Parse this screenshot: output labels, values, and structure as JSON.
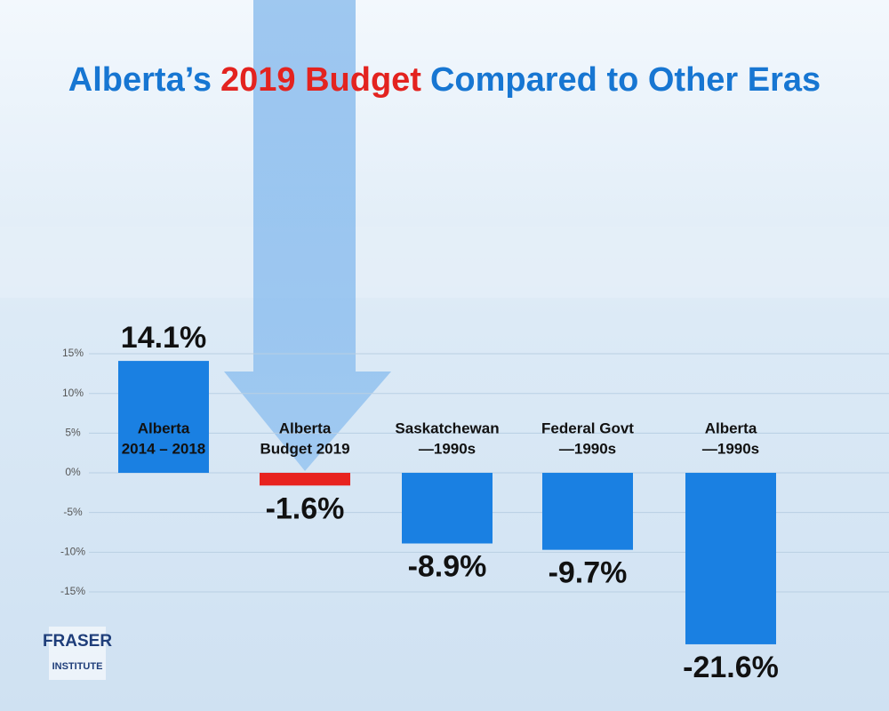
{
  "chart_data": {
    "type": "bar",
    "title_parts": [
      {
        "text": "Alberta’s",
        "color": "#1776d2"
      },
      {
        "text": "2019 Budget",
        "color": "#e3231f"
      },
      {
        "text": "Compared to Other Eras",
        "color": "#1776d2"
      }
    ],
    "categories": [
      [
        "Alberta",
        "2014 – 2018"
      ],
      [
        "Alberta",
        "Budget 2019"
      ],
      [
        "Saskatchewan",
        "—1990s"
      ],
      [
        "Federal Govt",
        "—1990s"
      ],
      [
        "Alberta",
        "—1990s"
      ]
    ],
    "values": [
      14.1,
      -1.6,
      -8.9,
      -9.7,
      -21.6
    ],
    "value_labels": [
      "14.1%",
      "-1.6%",
      "-8.9%",
      "-9.7%",
      "-21.6%"
    ],
    "colors": [
      "#1a80e2",
      "#e8231f",
      "#1a80e2",
      "#1a80e2",
      "#1a80e2"
    ],
    "ylim": [
      -25,
      20
    ],
    "yticks": [
      {
        "value": 15,
        "label": "15%"
      },
      {
        "value": 10,
        "label": "10%"
      },
      {
        "value": 5,
        "label": "5%"
      },
      {
        "value": 0,
        "label": "0%"
      },
      {
        "value": -5,
        "label": "-5%"
      },
      {
        "value": -10,
        "label": "-10%"
      },
      {
        "value": -15,
        "label": "-15%"
      }
    ],
    "grid": true
  },
  "logo": {
    "line1": "FRASER",
    "line2": "INSTITUTE"
  }
}
